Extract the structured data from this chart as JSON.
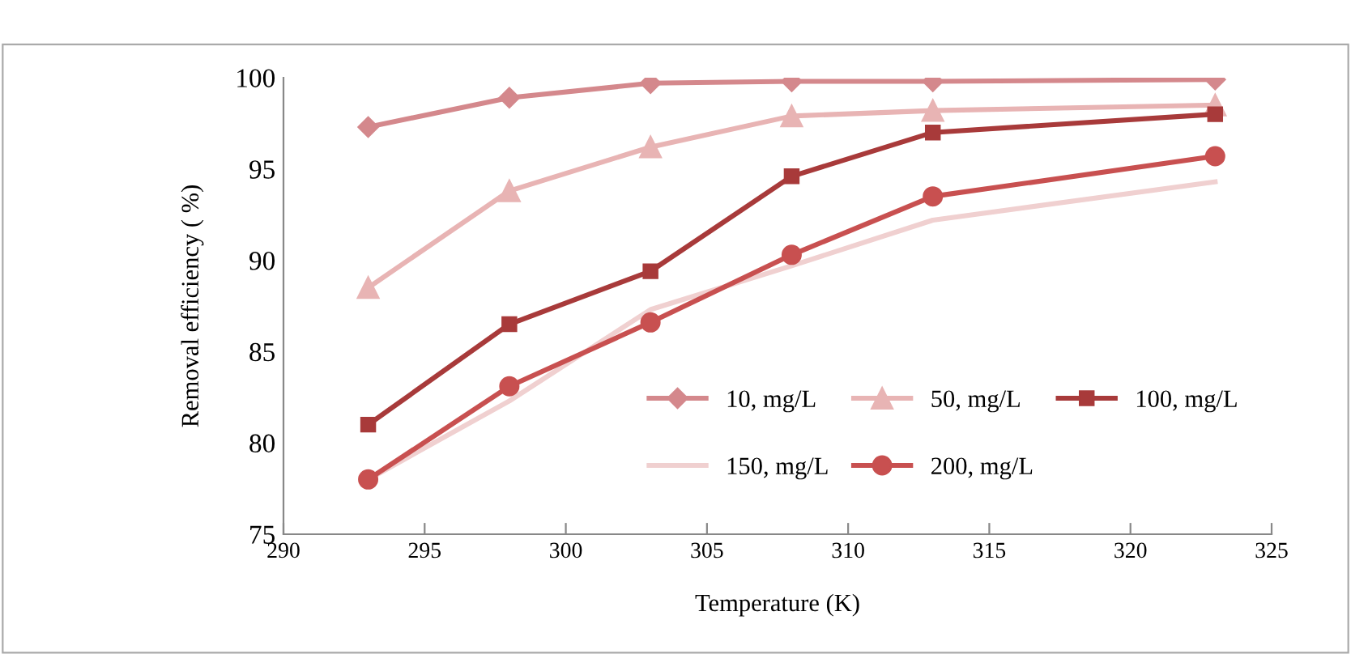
{
  "chart_data": {
    "type": "line",
    "xlabel": "Temperature (K)",
    "ylabel": "Removal efficiency ( %)",
    "x": [
      293,
      298,
      303,
      308,
      313,
      323
    ],
    "xlim": [
      290,
      325
    ],
    "xticks": [
      290,
      295,
      300,
      305,
      310,
      315,
      320,
      325
    ],
    "ylim": [
      75,
      100
    ],
    "yticks": [
      75,
      80,
      85,
      90,
      95,
      100
    ],
    "grid": false,
    "legend": "bottom right",
    "series": [
      {
        "name": "10, mg/L",
        "color": "#d4888c",
        "marker": "diamond",
        "values": [
          97.3,
          98.9,
          99.7,
          99.8,
          99.8,
          99.9
        ]
      },
      {
        "name": "50, mg/L",
        "color": "#e8b4b4",
        "marker": "triangle",
        "values": [
          88.5,
          93.8,
          96.2,
          97.9,
          98.2,
          98.5
        ]
      },
      {
        "name": "100, mg/L",
        "color": "#a83a3a",
        "marker": "square",
        "values": [
          81.0,
          86.5,
          89.4,
          94.6,
          97.0,
          98.0
        ]
      },
      {
        "name": "150, mg/L",
        "color": "#f0d0d0",
        "marker": "none",
        "values": [
          78.0,
          82.3,
          87.3,
          89.7,
          92.2,
          94.3
        ]
      },
      {
        "name": "200, mg/L",
        "color": "#c85050",
        "marker": "circle",
        "values": [
          78.0,
          83.1,
          86.6,
          90.3,
          93.5,
          95.7
        ]
      }
    ]
  }
}
